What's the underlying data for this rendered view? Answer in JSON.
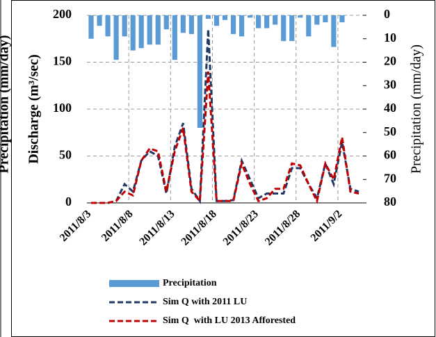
{
  "side_label": "Precipitation (mm/day)",
  "chart_data": {
    "type": "combo",
    "y_label": "Discharge (m³/sec)",
    "y2_label": "Precipitation (mm/day)",
    "categories": [
      "2011/8/3",
      null,
      null,
      null,
      null,
      "2011/8/8",
      null,
      null,
      null,
      null,
      "2011/8/13",
      null,
      null,
      null,
      null,
      "2011/8/18",
      null,
      null,
      null,
      null,
      "2011/8/23",
      null,
      null,
      null,
      null,
      "2011/8/28",
      null,
      null,
      null,
      null,
      "2011/9/2",
      null,
      null
    ],
    "ylim": [
      0,
      200
    ],
    "yticks": [
      0,
      50,
      100,
      150,
      200
    ],
    "y2lim": [
      80,
      0
    ],
    "y2ticks": [
      0,
      10,
      20,
      30,
      40,
      50,
      60,
      70,
      80
    ],
    "grid": true,
    "legend": "bottom",
    "series": [
      {
        "name": "Precipitation",
        "type": "bar",
        "axis": "y2",
        "color": "#5b9bd5",
        "values": [
          10,
          4.5,
          9,
          19,
          9,
          15,
          14,
          12.5,
          12.5,
          6,
          19,
          7.5,
          8,
          48,
          1.5,
          4.5,
          2,
          8,
          9,
          1,
          5.5,
          5.5,
          4,
          11,
          11,
          1,
          9,
          4,
          3,
          13.5,
          3,
          0,
          0
        ]
      },
      {
        "name": "Sim Q with 2011 LU",
        "type": "line",
        "color": "#1f3864",
        "values": [
          0,
          0,
          0,
          2,
          20,
          12,
          45,
          55,
          50,
          10,
          60,
          85,
          15,
          2,
          185,
          2,
          2,
          3,
          45,
          25,
          5,
          10,
          10,
          10,
          37,
          37,
          20,
          5,
          42,
          20,
          65,
          15,
          12
        ]
      },
      {
        "name": "Sim Q  with LU 2013 Afforested",
        "type": "line",
        "color": "#c00000",
        "values": [
          0,
          0,
          0,
          2,
          12,
          8,
          45,
          58,
          55,
          12,
          55,
          80,
          12,
          2,
          140,
          2,
          2,
          2,
          42,
          20,
          2,
          5,
          15,
          15,
          42,
          40,
          20,
          2,
          42,
          25,
          70,
          12,
          10
        ]
      }
    ]
  }
}
